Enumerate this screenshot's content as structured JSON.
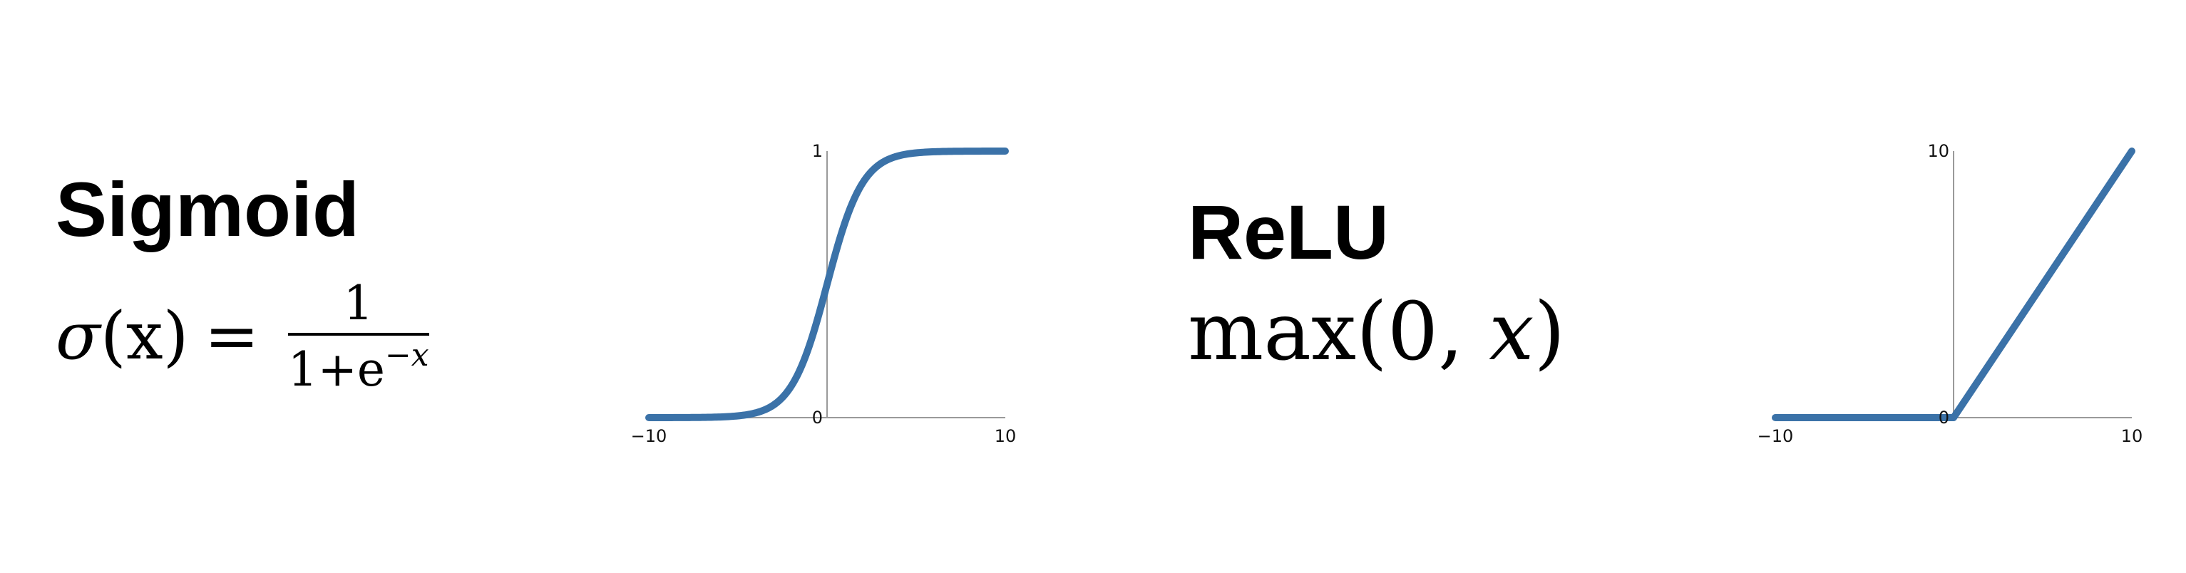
{
  "sigmoid": {
    "title": "Sigmoid",
    "formula": {
      "sigma": "σ",
      "arg": "(x)",
      "equals": "=",
      "numerator": "1",
      "denominator_base": "1+e",
      "denominator_exponent": "−x"
    }
  },
  "relu": {
    "title": "ReLU",
    "formula": {
      "func": "max",
      "open": "(0, ",
      "var": "x",
      "close": ")"
    }
  },
  "colors": {
    "curve": "#3b72a8",
    "axis": "#9a9a9a"
  },
  "chart_data": [
    {
      "type": "line",
      "title": "",
      "function": "sigmoid",
      "x": [
        -10,
        -8,
        -6,
        -4,
        -3,
        -2,
        -1,
        0,
        1,
        2,
        3,
        4,
        6,
        8,
        10
      ],
      "y": [
        4.54e-05,
        0.000335,
        0.00247,
        0.018,
        0.0474,
        0.119,
        0.269,
        0.5,
        0.731,
        0.881,
        0.953,
        0.982,
        0.9975,
        0.99966,
        0.99995
      ],
      "xlim": [
        -10,
        10
      ],
      "ylim": [
        0,
        1
      ],
      "x_ticks": [
        "−10",
        "10"
      ],
      "y_ticks": [
        "1",
        "0"
      ],
      "grid": false
    },
    {
      "type": "line",
      "title": "",
      "function": "relu",
      "x": [
        -10,
        0,
        10
      ],
      "y": [
        0,
        0,
        10
      ],
      "xlim": [
        -10,
        10
      ],
      "ylim": [
        0,
        10
      ],
      "x_ticks": [
        "−10",
        "10"
      ],
      "y_ticks": [
        "10",
        "0"
      ],
      "grid": false
    }
  ]
}
